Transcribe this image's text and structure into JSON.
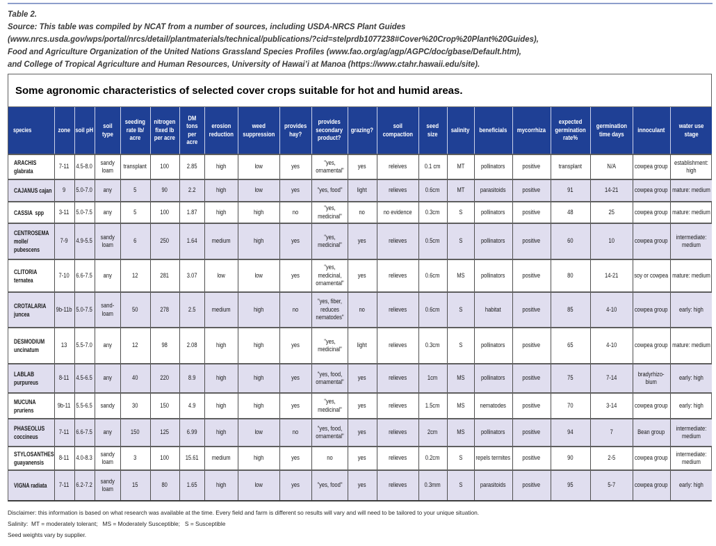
{
  "accent_colors": {
    "top_rule": "#8d9ecb",
    "header_blue": "#1f4095",
    "row_shade": "#e0deef"
  },
  "intro": {
    "caption": "Table 2.",
    "lines": [
      "Source: This table was compiled by NCAT from a number of sources, including USDA-NRCS Plant Guides",
      "(www.nrcs.usda.gov/wps/portal/nrcs/detail/plantmaterials/technical/publications/?cid=stelprdb1077238#Cover%20Crop%20Plant%20Guides),",
      "Food and Agriculture Organization of the United Nations Grassland Species Profiles (www.fao.org/ag/agp/AGPC/doc/gbase/Default.htm),",
      "and College of Tropical Agriculture and Human Resources, University of Hawai’i at Manoa (https://www.ctahr.hawaii.edu/site)."
    ]
  },
  "table": {
    "title": "Some agronomic characteristics of selected cover crops suitable for hot and humid areas.",
    "columns": [
      "species",
      "zone",
      "soil pH",
      "soil\ntype",
      "seeding\nrate lb/\nacre",
      "nitrogen\nfixed lb\nper acre",
      "DM\ntons\nper\nacre",
      "erosion\nreduction",
      "weed\nsuppression",
      "provides\nhay?",
      "provides\nsecondary\nproduct?",
      "grazing?",
      "soil\ncompaction",
      "seed\nsize",
      "salinity",
      "beneficials",
      "mycorrhiza",
      "expected\ngermination\nrate%",
      "germination\ntime days",
      "innoculant",
      "water use\nstage"
    ],
    "rows": [
      [
        "ARACHIS\nglabrata",
        "7-11",
        "4.5-8.0",
        "sandy loam",
        "transplant",
        "100",
        "2.85",
        "high",
        "low",
        "yes",
        "\"yes, ornamental\"",
        "yes",
        "releives",
        "0.1 cm",
        "MT",
        "pollinators",
        "positive",
        "transplant",
        "N/A",
        "cowpea group",
        "establishment: high"
      ],
      [
        "CAJANUS cajan",
        "9",
        "5.0-7.0",
        "any",
        "5",
        "90",
        "2.2",
        "high",
        "low",
        "yes",
        "\"yes, food\"",
        "light",
        "relieves",
        "0.6cm",
        "MT",
        "parasitoids",
        "positive",
        "91",
        "14-21",
        "cowpea group",
        "mature: medium"
      ],
      [
        "CASSIA  spp",
        "3-11",
        "5.0-7.5",
        "any",
        "5",
        "100",
        "1.87",
        "high",
        "high",
        "no",
        "\"yes, medicinal\"",
        "no",
        "no evidence",
        "0.3cm",
        "S",
        "pollinators",
        "positive",
        "48",
        "25",
        "cowpea group",
        "mature: medium"
      ],
      [
        "CENTROSEMA\nmolle/\npubescens",
        "7-9",
        "4.9-5.5",
        "sandy loam",
        "6",
        "250",
        "1.64",
        "medium",
        "high",
        "yes",
        "\"yes, medicinal\"",
        "yes",
        "relieves",
        "0.5cm",
        "S",
        "pollinators",
        "positive",
        "60",
        "10",
        "cowpea group",
        "intermediate: medium"
      ],
      [
        "CLITORIA\nternatea",
        "7-10",
        "6.6-7.5",
        "any",
        "12",
        "281",
        "3.07",
        "low",
        "low",
        "yes",
        "\"yes, medicinal, ornamental\"",
        "yes",
        "relieves",
        "0.6cm",
        "MS",
        "pollinators",
        "positive",
        "80",
        "14-21",
        "soy or cowpea",
        "mature: medium"
      ],
      [
        "CROTALARIA\njuncea",
        "9b-11b",
        "5.0-7.5",
        "sand-loam",
        "50",
        "278",
        "2.5",
        "medium",
        "high",
        "no",
        "\"yes, fiber, reduces nematodes\"",
        "no",
        "relieves",
        "0.6cm",
        "S",
        "habitat",
        "positive",
        "85",
        "4-10",
        "cowpea group",
        "early: high"
      ],
      [
        "DESMODIUM\nuncinatum",
        "13",
        "5.5-7.0",
        "any",
        "12",
        "98",
        "2.08",
        "high",
        "high",
        "yes",
        "\"yes, medicinal\"",
        "light",
        "relieves",
        "0.3cm",
        "S",
        "pollinators",
        "positive",
        "65",
        "4-10",
        "cowpea group",
        "mature: medium"
      ],
      [
        "LABLAB\npurpureus",
        "8-11",
        "4.5-6.5",
        "any",
        "40",
        "220",
        "8.9",
        "high",
        "high",
        "yes",
        "\"yes, food, ornamental\"",
        "yes",
        "relieves",
        "1cm",
        "MS",
        "pollinators",
        "positive",
        "75",
        "7-14",
        "bradyrhizo-bium",
        "early: high"
      ],
      [
        "MUCUNA\npruriens",
        "9b-11",
        "5.5-6.5",
        "sandy",
        "30",
        "150",
        "4.9",
        "high",
        "high",
        "yes",
        "\"yes, medicinal\"",
        "yes",
        "relieves",
        "1.5cm",
        "MS",
        "nematodes",
        "positive",
        "70",
        "3-14",
        "cowpea group",
        "early: high"
      ],
      [
        "PHASEOLUS\ncoccineus",
        "7-11",
        "6.6-7.5",
        "any",
        "150",
        "125",
        "6.99",
        "high",
        "low",
        "no",
        "\"yes, food, ornamental\"",
        "yes",
        "relieves",
        "2cm",
        "MS",
        "pollinators",
        "positive",
        "94",
        "7",
        "Bean group",
        "intermediate: medium"
      ],
      [
        "STYLOSANTHES\nguayanensis",
        "8-11",
        "4.0-8.3",
        "sandy loam",
        "3",
        "100",
        "15.61",
        "medium",
        "high",
        "yes",
        "no",
        "yes",
        "relieves",
        "0.2cm",
        "S",
        "repels termites",
        "positive",
        "90",
        "2-5",
        "cowpea group",
        "intermediate: medium"
      ],
      [
        "VIGNA radiata",
        "7-11",
        "6.2-7.2",
        "sandy loam",
        "15",
        "80",
        "1.65",
        "high",
        "low",
        "yes",
        "\"yes, food\"",
        "yes",
        "relieves",
        "0.3mm",
        "S",
        "parasitoids",
        "positive",
        "95",
        "5-7",
        "cowpea group",
        "early: high"
      ]
    ]
  },
  "footnotes": [
    "Disclaimer: this information is based on what research was available at the time. Every field and farm is different so results will vary and will need to be tailored to your unique situation.",
    "Salinity:  MT = moderately tolerant;   MS = Moderately Susceptible;   S = Susceptible",
    "Seed weights vary by supplier."
  ]
}
